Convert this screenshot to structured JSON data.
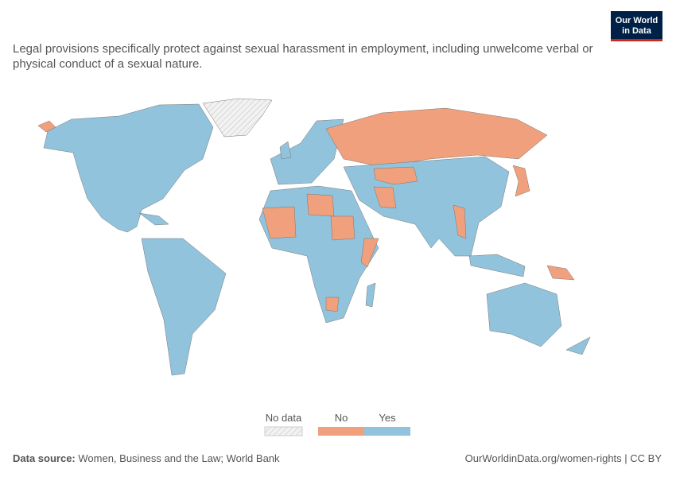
{
  "logo": [
    "Our World",
    "in Data"
  ],
  "title": "Legal provisions specifically protect against sexual harassment in employment, including unwelcome verbal or physical conduct of a sexual nature.",
  "legend": [
    {
      "label": "No data",
      "color": "#e6e6e6"
    },
    {
      "label": "No",
      "color": "#f0a07c"
    },
    {
      "label": "Yes",
      "color": "#92c3dc"
    }
  ],
  "footer": {
    "source_label": "Data source:",
    "source": "Women, Business and the Law; World Bank",
    "link": "OurWorldinData.org/women-rights | CC BY"
  }
}
